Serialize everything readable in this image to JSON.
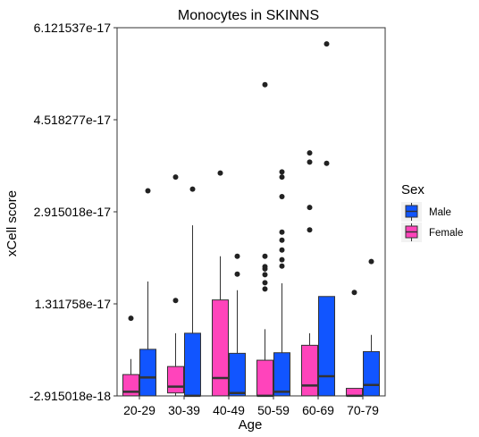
{
  "chart_data": {
    "type": "boxplot",
    "title": "Monocytes in SKINNS",
    "xlabel": "Age",
    "ylabel": "xCell score",
    "categories": [
      "20-29",
      "30-39",
      "40-49",
      "50-59",
      "60-69",
      "70-79"
    ],
    "y_ticks": [
      -2.915018e-18,
      1.311758e-17,
      2.915018e-17,
      4.518277e-17,
      6.121537e-17
    ],
    "y_tick_labels": [
      "-2.915018e-18",
      "1.311758e-17",
      "2.915018e-17",
      "4.518277e-17",
      "6.121537e-17"
    ],
    "ylim": [
      -2.915018e-18,
      6.121537e-17
    ],
    "grid": false,
    "legend": {
      "title": "Sex",
      "position": "right",
      "entries": [
        {
          "label": "Male",
          "color": "#1155ff"
        },
        {
          "label": "Female",
          "color": "#ff44bb"
        }
      ]
    },
    "series": [
      {
        "name": "Female",
        "color": "#ff44bb",
        "boxes": [
          {
            "min": -2.9e-18,
            "q1": -2.9e-18,
            "median": -2.2e-18,
            "q3": 8e-19,
            "max": 3.5e-18,
            "outliers": [
              1.06e-17
            ]
          },
          {
            "min": -2.9e-18,
            "q1": -2.4e-18,
            "median": -1.3e-18,
            "q3": 2.2e-18,
            "max": 8e-18,
            "outliers": [
              3.52e-17,
              1.37e-17
            ]
          },
          {
            "min": -2.9e-18,
            "q1": -2.9e-18,
            "median": 2e-19,
            "q3": 1.38e-17,
            "max": 2.14e-17,
            "outliers": [
              3.59e-17
            ]
          },
          {
            "min": -2.9e-18,
            "q1": -2.9e-18,
            "median": -2.9e-18,
            "q3": 3.3e-18,
            "max": 8.7e-18,
            "outliers": [
              5.13e-17,
              1.57e-17,
              1.68e-17,
              1.82e-17,
              1.92e-17,
              1.96e-17,
              2.14e-17
            ]
          },
          {
            "min": -2.9e-18,
            "q1": -2.9e-18,
            "median": -1.1e-18,
            "q3": 5.9e-18,
            "max": 8e-18,
            "outliers": [
              3.94e-17,
              3.78e-17,
              2.99e-17,
              2.6e-17
            ]
          },
          {
            "min": -2.9e-18,
            "q1": -2.9e-18,
            "median": -2.9e-18,
            "q3": -1.6e-18,
            "max": -1.6e-18,
            "outliers": [
              1.51e-17
            ]
          }
        ]
      },
      {
        "name": "Male",
        "color": "#1155ff",
        "boxes": [
          {
            "min": -2.9e-18,
            "q1": -2.9e-18,
            "median": 3e-19,
            "q3": 5.2e-18,
            "max": 1.7e-17,
            "outliers": [
              3.28e-17
            ]
          },
          {
            "min": -2.9e-18,
            "q1": -2.9e-18,
            "median": -2.9e-18,
            "q3": 8e-18,
            "max": 2.68e-17,
            "outliers": [
              3.31e-17
            ]
          },
          {
            "min": -2.9e-18,
            "q1": -2.9e-18,
            "median": -2.4e-18,
            "q3": 4.5e-18,
            "max": 1.55e-17,
            "outliers": [
              2.14e-17,
              1.83e-17
            ]
          },
          {
            "min": -2.9e-18,
            "q1": -2.9e-18,
            "median": -2.2e-18,
            "q3": 4.6e-18,
            "max": 1.67e-17,
            "outliers": [
              3.61e-17,
              3.52e-17,
              3.18e-17,
              2.56e-17,
              2.42e-17,
              2.25e-17,
              2.08e-17,
              1.97e-17
            ]
          },
          {
            "min": -2.9e-18,
            "q1": -2.9e-18,
            "median": 5e-19,
            "q3": 1.44e-17,
            "max": 1.44e-17,
            "outliers": [
              5.84e-17,
              3.76e-17
            ]
          },
          {
            "min": -2.9e-18,
            "q1": -2.9e-18,
            "median": -1e-18,
            "q3": 4.8e-18,
            "max": 7.7e-18,
            "outliers": [
              2.05e-17
            ]
          }
        ]
      }
    ]
  }
}
